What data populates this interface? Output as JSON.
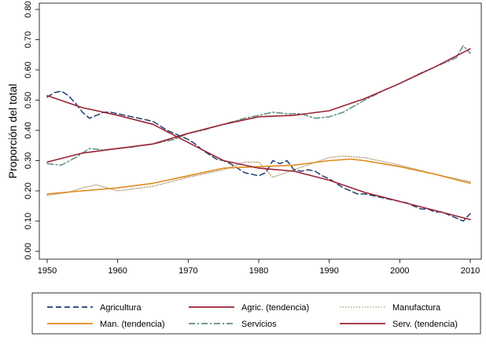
{
  "chart_data": {
    "type": "line",
    "xlabel": "",
    "ylabel": "Proporción del total",
    "xlim": [
      1950,
      2010
    ],
    "ylim": [
      0,
      0.8
    ],
    "x_ticks": [
      "1950",
      "1960",
      "1970",
      "1980",
      "1990",
      "2000",
      "2010"
    ],
    "y_ticks": [
      "0.00",
      "0.10",
      "0.20",
      "0.30",
      "0.40",
      "0.50",
      "0.60",
      "0.70",
      "0.80"
    ],
    "grid": false,
    "legend_position": "bottom",
    "series": [
      {
        "name": "Agricultura",
        "color": "#1f3f6e",
        "style": "dashed",
        "x": [
          1950,
          1951,
          1952,
          1953,
          1954,
          1955,
          1956,
          1957,
          1958,
          1959,
          1960,
          1961,
          1962,
          1963,
          1964,
          1965,
          1966,
          1967,
          1968,
          1969,
          1970,
          1971,
          1972,
          1973,
          1974,
          1975,
          1976,
          1977,
          1978,
          1979,
          1980,
          1981,
          1982,
          1983,
          1984,
          1985,
          1986,
          1987,
          1988,
          1989,
          1990,
          1991,
          1992,
          1993,
          1994,
          1995,
          1996,
          1997,
          1998,
          1999,
          2000,
          2001,
          2002,
          2003,
          2004,
          2005,
          2006,
          2007,
          2008,
          2009,
          2010
        ],
        "y": [
          0.51,
          0.525,
          0.53,
          0.515,
          0.49,
          0.46,
          0.44,
          0.45,
          0.46,
          0.46,
          0.455,
          0.45,
          0.445,
          0.44,
          0.435,
          0.43,
          0.415,
          0.4,
          0.39,
          0.38,
          0.37,
          0.355,
          0.335,
          0.32,
          0.305,
          0.3,
          0.29,
          0.275,
          0.26,
          0.255,
          0.25,
          0.26,
          0.3,
          0.29,
          0.3,
          0.27,
          0.265,
          0.27,
          0.265,
          0.25,
          0.24,
          0.225,
          0.21,
          0.2,
          0.19,
          0.19,
          0.185,
          0.18,
          0.175,
          0.17,
          0.165,
          0.16,
          0.15,
          0.14,
          0.14,
          0.13,
          0.13,
          0.12,
          0.11,
          0.1,
          0.125
        ]
      },
      {
        "name": "Agric. (tendencia)",
        "color": "#9b2335",
        "style": "solid",
        "x": [
          1950,
          1955,
          1960,
          1965,
          1970,
          1975,
          1980,
          1985,
          1990,
          1995,
          2000,
          2005,
          2010
        ],
        "y": [
          0.515,
          0.475,
          0.45,
          0.42,
          0.36,
          0.3,
          0.275,
          0.265,
          0.235,
          0.195,
          0.165,
          0.135,
          0.105
        ]
      },
      {
        "name": "Manufactura",
        "color": "#b8a888",
        "style": "dotted",
        "x": [
          1950,
          1953,
          1955,
          1957,
          1960,
          1965,
          1970,
          1975,
          1978,
          1980,
          1982,
          1985,
          1990,
          1992,
          1995,
          2000,
          2005,
          2010
        ],
        "y": [
          0.185,
          0.195,
          0.21,
          0.22,
          0.2,
          0.215,
          0.245,
          0.27,
          0.295,
          0.295,
          0.245,
          0.27,
          0.31,
          0.315,
          0.31,
          0.285,
          0.255,
          0.23
        ]
      },
      {
        "name": "Man. (tendencia)",
        "color": "#e08a1e",
        "style": "solid",
        "x": [
          1950,
          1955,
          1960,
          1965,
          1970,
          1975,
          1980,
          1985,
          1990,
          1993,
          1995,
          2000,
          2005,
          2010
        ],
        "y": [
          0.19,
          0.2,
          0.21,
          0.225,
          0.25,
          0.275,
          0.28,
          0.285,
          0.3,
          0.305,
          0.3,
          0.28,
          0.255,
          0.225
        ]
      },
      {
        "name": "Servicios",
        "color": "#5f8f7f",
        "style": "dashdot",
        "x": [
          1950,
          1952,
          1954,
          1956,
          1958,
          1960,
          1962,
          1965,
          1968,
          1970,
          1972,
          1975,
          1978,
          1980,
          1982,
          1984,
          1986,
          1988,
          1990,
          1992,
          1995,
          1998,
          2000,
          2003,
          2005,
          2008,
          2009,
          2010
        ],
        "y": [
          0.29,
          0.285,
          0.31,
          0.34,
          0.335,
          0.34,
          0.345,
          0.355,
          0.37,
          0.39,
          0.4,
          0.42,
          0.44,
          0.45,
          0.46,
          0.455,
          0.455,
          0.44,
          0.445,
          0.46,
          0.5,
          0.535,
          0.555,
          0.59,
          0.61,
          0.64,
          0.68,
          0.655
        ]
      },
      {
        "name": "Serv. (tendencia)",
        "color": "#9b2335",
        "style": "solid",
        "x": [
          1950,
          1955,
          1960,
          1965,
          1970,
          1975,
          1980,
          1985,
          1990,
          1995,
          2000,
          2005,
          2010
        ],
        "y": [
          0.295,
          0.325,
          0.34,
          0.355,
          0.39,
          0.42,
          0.445,
          0.45,
          0.465,
          0.505,
          0.555,
          0.61,
          0.67
        ]
      }
    ]
  }
}
